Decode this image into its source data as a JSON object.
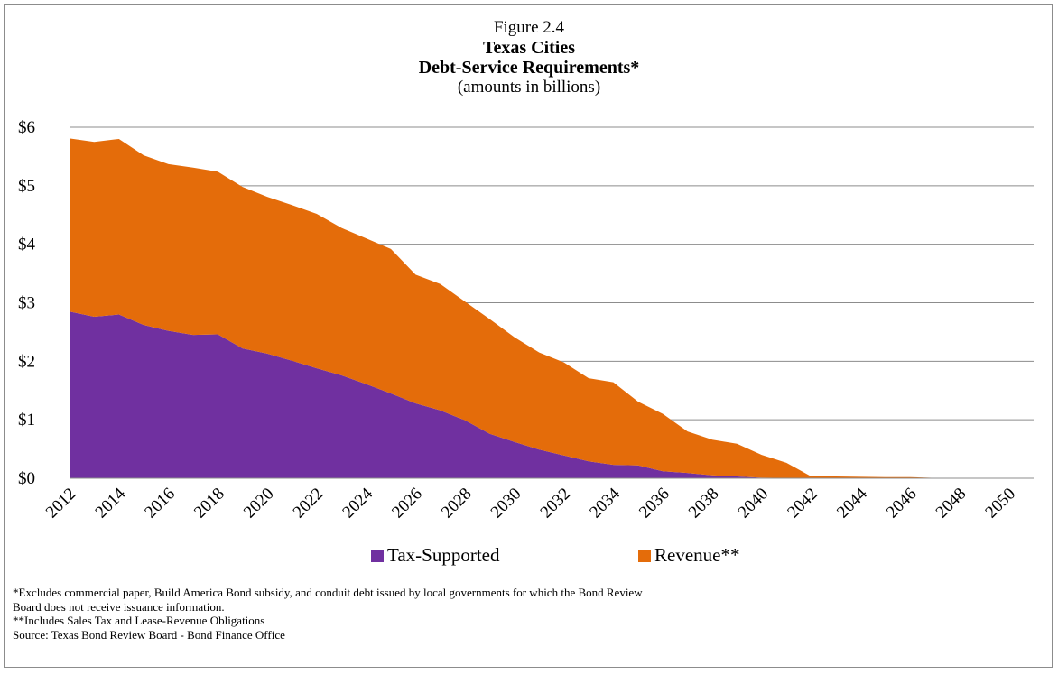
{
  "figure_label": "Figure 2.4",
  "chart_data": {
    "type": "area",
    "stacked": true,
    "title": "Texas Cities",
    "subtitle": "Debt-Service Requirements*",
    "units_note": "(amounts in billions)",
    "xlabel": "",
    "ylabel": "",
    "ylim": [
      0,
      6
    ],
    "y_ticks": [
      "$0",
      "$1",
      "$2",
      "$3",
      "$4",
      "$5",
      "$6"
    ],
    "x": [
      2012,
      2013,
      2014,
      2015,
      2016,
      2017,
      2018,
      2019,
      2020,
      2021,
      2022,
      2023,
      2024,
      2025,
      2026,
      2027,
      2028,
      2029,
      2030,
      2031,
      2032,
      2033,
      2034,
      2035,
      2036,
      2037,
      2038,
      2039,
      2040,
      2041,
      2042,
      2043,
      2044,
      2045,
      2046,
      2047,
      2048,
      2049,
      2050,
      2051
    ],
    "x_tick_labels": [
      "2012",
      "2014",
      "2016",
      "2018",
      "2020",
      "2022",
      "2024",
      "2026",
      "2028",
      "2030",
      "2032",
      "2034",
      "2036",
      "2038",
      "2040",
      "2042",
      "2044",
      "2046",
      "2048",
      "2050"
    ],
    "grid": true,
    "legend_position": "bottom",
    "series": [
      {
        "name": "Tax-Supported",
        "color": "#7030a0",
        "values": [
          2.85,
          2.76,
          2.8,
          2.62,
          2.52,
          2.45,
          2.46,
          2.22,
          2.13,
          2.01,
          1.88,
          1.76,
          1.61,
          1.45,
          1.28,
          1.16,
          0.99,
          0.76,
          0.62,
          0.49,
          0.39,
          0.29,
          0.23,
          0.22,
          0.12,
          0.09,
          0.05,
          0.03,
          0.01,
          0.005,
          0.0,
          0.0,
          0.0,
          0.0,
          0.0,
          0.0,
          0.0,
          0.0,
          0.0,
          0.0
        ]
      },
      {
        "name": "Revenue**",
        "color": "#e46c0a",
        "values": [
          2.96,
          2.99,
          3.0,
          2.9,
          2.85,
          2.86,
          2.78,
          2.76,
          2.68,
          2.66,
          2.64,
          2.52,
          2.49,
          2.47,
          2.2,
          2.16,
          2.03,
          1.96,
          1.79,
          1.66,
          1.59,
          1.42,
          1.41,
          1.09,
          0.98,
          0.71,
          0.61,
          0.56,
          0.39,
          0.26,
          0.03,
          0.03,
          0.025,
          0.02,
          0.02,
          0.005,
          0.005,
          0.005,
          0.005,
          0.005
        ]
      }
    ]
  },
  "notes": [
    "*Excludes commercial paper, Build America Bond subsidy, and conduit debt issued by local governments for which the Bond Review",
    "Board does not receive issuance information.",
    "**Includes Sales Tax and Lease-Revenue Obligations",
    "Source: Texas Bond Review Board - Bond Finance Office"
  ]
}
